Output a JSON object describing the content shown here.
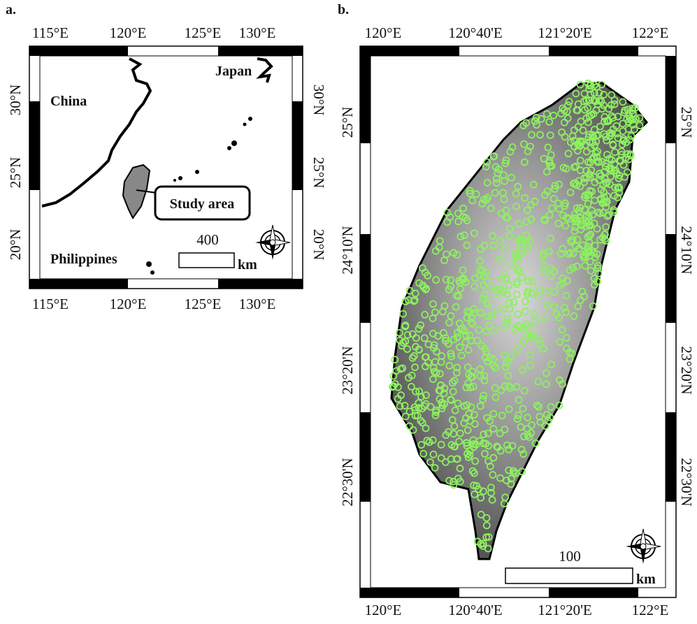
{
  "panel_a": {
    "label": "a.",
    "lon_ticks": [
      "115°E",
      "120°E",
      "125°E",
      "130°E"
    ],
    "lat_ticks": [
      "30°N",
      "25°N",
      "20°N"
    ],
    "places": [
      "China",
      "Japan",
      "Philippines"
    ],
    "callout": "Study area",
    "scale": {
      "length": 400,
      "unit": "km"
    }
  },
  "panel_b": {
    "label": "b.",
    "lon_ticks": [
      "120°E",
      "120°40'E",
      "121°20'E",
      "122°E"
    ],
    "lat_ticks": [
      "25°N",
      "24°10'N",
      "23°20'N",
      "22°30'N"
    ],
    "scale": {
      "length": 100,
      "unit": "km"
    }
  }
}
